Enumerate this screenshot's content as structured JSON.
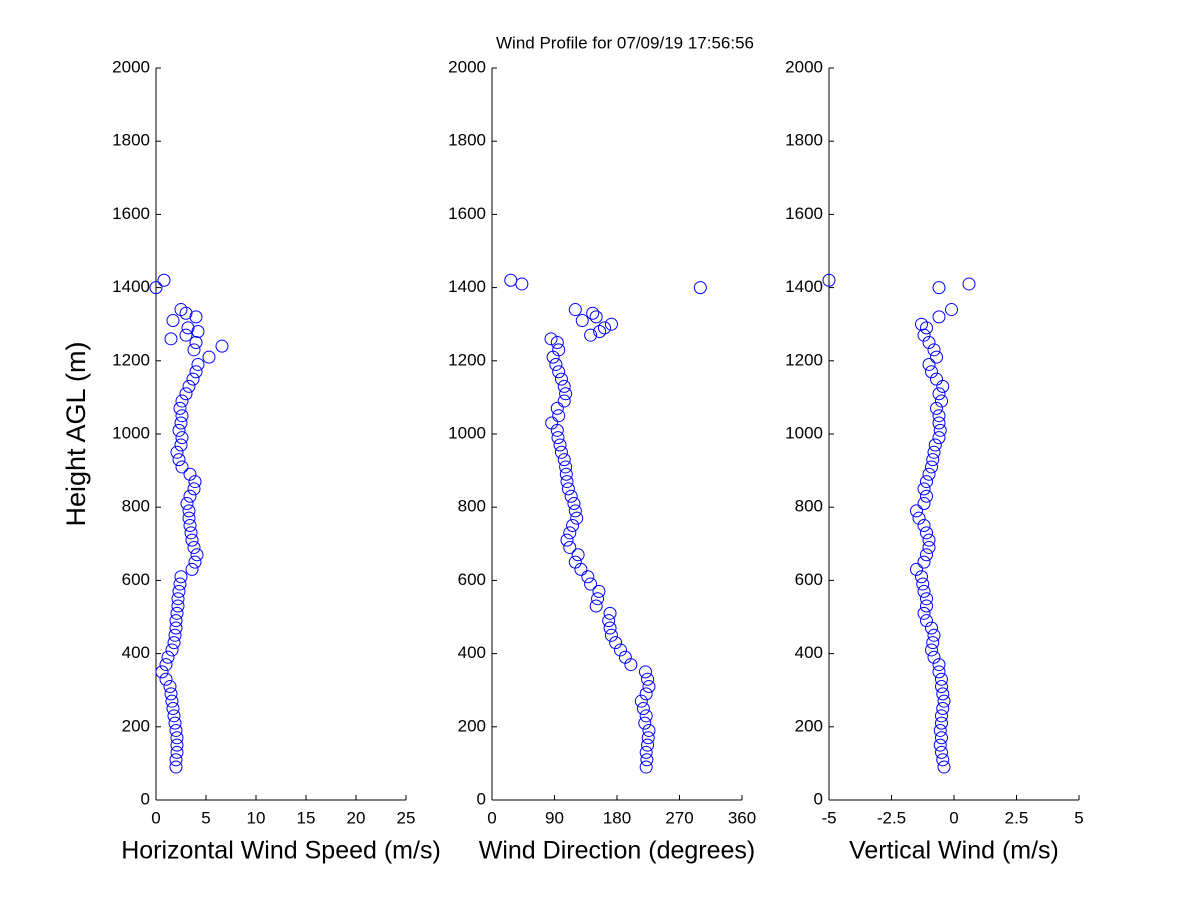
{
  "chart_data": [
    {
      "type": "scatter",
      "title": "Wind Profile for  07/09/19 17:56:56",
      "xlabel": "Horizontal Wind Speed (m/s)",
      "ylabel": "Height AGL (m)",
      "color": "#0000ff",
      "xlim": [
        0,
        25
      ],
      "xticks": [
        0,
        5,
        10,
        15,
        20,
        25
      ],
      "ylim": [
        0,
        2000
      ],
      "yticks": [
        0,
        200,
        400,
        600,
        800,
        1000,
        1200,
        1400,
        1600,
        1800,
        2000
      ],
      "x": [
        2.0,
        2.0,
        2.1,
        2.1,
        2.1,
        2.0,
        1.9,
        1.8,
        1.7,
        1.6,
        1.5,
        1.4,
        1.0,
        0.6,
        1.0,
        1.2,
        1.6,
        1.8,
        1.9,
        2.0,
        2.0,
        2.1,
        2.2,
        2.2,
        2.3,
        2.4,
        2.5,
        3.6,
        3.9,
        4.1,
        3.8,
        3.6,
        3.5,
        3.4,
        3.3,
        3.3,
        3.1,
        3.4,
        3.8,
        3.9,
        3.4,
        2.6,
        2.3,
        2.1,
        2.5,
        2.6,
        2.3,
        2.5,
        2.6,
        2.4,
        2.6,
        3.0,
        3.3,
        3.7,
        4.0,
        4.2,
        5.3,
        3.8,
        4.0,
        6.6,
        1.5,
        3.0,
        4.2,
        3.2,
        1.7,
        4.0,
        3.0,
        2.5,
        0.0,
        0.8
      ],
      "y": [
        90,
        110,
        130,
        150,
        170,
        190,
        210,
        230,
        250,
        270,
        290,
        310,
        330,
        350,
        370,
        390,
        410,
        430,
        450,
        470,
        490,
        510,
        530,
        550,
        570,
        590,
        610,
        630,
        650,
        670,
        690,
        710,
        730,
        750,
        770,
        790,
        810,
        830,
        850,
        870,
        890,
        910,
        930,
        950,
        970,
        990,
        1010,
        1030,
        1050,
        1070,
        1090,
        1110,
        1130,
        1150,
        1170,
        1190,
        1210,
        1230,
        1250,
        1240,
        1260,
        1270,
        1280,
        1290,
        1310,
        1320,
        1330,
        1340,
        1400,
        1420
      ]
    },
    {
      "type": "scatter",
      "xlabel": "Wind Direction (degrees)",
      "color": "#0000ff",
      "xlim": [
        0,
        360
      ],
      "xticks": [
        0,
        90,
        180,
        270,
        360
      ],
      "ylim": [
        0,
        2000
      ],
      "yticks": [
        0,
        200,
        400,
        600,
        800,
        1000,
        1200,
        1400,
        1600,
        1800,
        2000
      ],
      "x": [
        222,
        223,
        222,
        224,
        225,
        226,
        220,
        222,
        218,
        215,
        222,
        226,
        224,
        221,
        200,
        192,
        185,
        178,
        172,
        170,
        168,
        170,
        150,
        152,
        154,
        142,
        138,
        128,
        120,
        124,
        112,
        108,
        112,
        116,
        122,
        120,
        118,
        114,
        110,
        108,
        107,
        106,
        104,
        100,
        98,
        95,
        94,
        86,
        96,
        94,
        104,
        106,
        104,
        100,
        96,
        92,
        88,
        96,
        94,
        85,
        120,
        130,
        145,
        150,
        155,
        142,
        162,
        172,
        27,
        43,
        300
      ],
      "y": [
        90,
        110,
        130,
        150,
        170,
        190,
        210,
        230,
        250,
        270,
        290,
        310,
        330,
        350,
        370,
        390,
        410,
        430,
        450,
        470,
        490,
        510,
        530,
        550,
        570,
        590,
        610,
        630,
        650,
        670,
        690,
        710,
        730,
        750,
        770,
        790,
        810,
        830,
        850,
        870,
        890,
        910,
        930,
        950,
        970,
        990,
        1010,
        1030,
        1050,
        1070,
        1090,
        1110,
        1130,
        1150,
        1170,
        1190,
        1210,
        1230,
        1250,
        1260,
        1340,
        1310,
        1330,
        1320,
        1280,
        1270,
        1290,
        1300,
        1420,
        1410,
        1400
      ]
    },
    {
      "type": "scatter",
      "xlabel": "Vertical Wind (m/s)",
      "color": "#0000ff",
      "xlim": [
        -5,
        5
      ],
      "xticks": [
        -5,
        -2.5,
        0,
        2.5,
        5
      ],
      "ylim": [
        0,
        2000
      ],
      "yticks": [
        0,
        200,
        400,
        600,
        800,
        1000,
        1200,
        1400,
        1600,
        1800,
        2000
      ],
      "x": [
        -0.4,
        -0.45,
        -0.5,
        -0.55,
        -0.5,
        -0.55,
        -0.5,
        -0.5,
        -0.45,
        -0.4,
        -0.45,
        -0.5,
        -0.5,
        -0.6,
        -0.6,
        -0.8,
        -0.9,
        -0.85,
        -0.8,
        -0.9,
        -1.1,
        -1.2,
        -1.1,
        -1.1,
        -1.2,
        -1.25,
        -1.3,
        -1.5,
        -1.2,
        -1.1,
        -1.0,
        -1.0,
        -1.1,
        -1.2,
        -1.4,
        -1.5,
        -1.2,
        -1.1,
        -1.2,
        -1.1,
        -1.0,
        -0.9,
        -0.85,
        -0.8,
        -0.75,
        -0.6,
        -0.55,
        -0.6,
        -0.6,
        -0.7,
        -0.5,
        -0.6,
        -0.45,
        -0.7,
        -0.9,
        -1.0,
        -0.7,
        -0.8,
        -1.0,
        -1.2,
        -1.1,
        -1.3,
        -0.6,
        -0.1,
        -0.6,
        0.6,
        -5
      ],
      "y": [
        90,
        110,
        130,
        150,
        170,
        190,
        210,
        230,
        250,
        270,
        290,
        310,
        330,
        350,
        370,
        390,
        410,
        430,
        450,
        470,
        490,
        510,
        530,
        550,
        570,
        590,
        610,
        630,
        650,
        670,
        690,
        710,
        730,
        750,
        770,
        790,
        810,
        830,
        850,
        870,
        890,
        910,
        930,
        950,
        970,
        990,
        1010,
        1030,
        1050,
        1070,
        1090,
        1110,
        1130,
        1150,
        1170,
        1190,
        1210,
        1230,
        1250,
        1270,
        1290,
        1300,
        1320,
        1340,
        1400,
        1410,
        1420
      ]
    }
  ]
}
